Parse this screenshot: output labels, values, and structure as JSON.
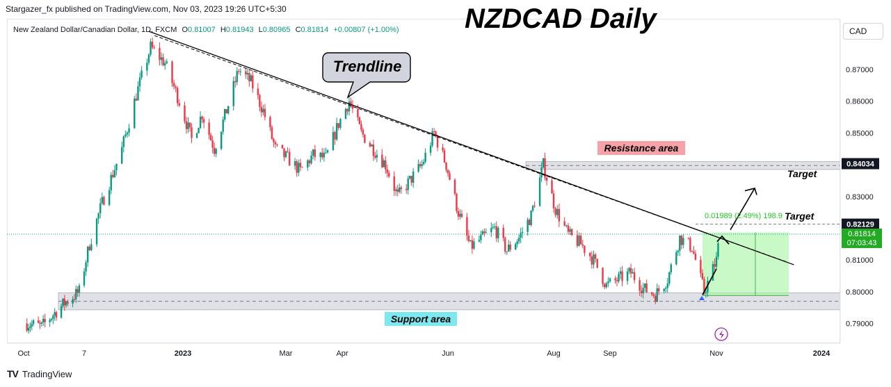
{
  "header": {
    "published": "Stargazer_fx published on TradingView.com, Nov 03, 2023 19:26 UTC+5:30"
  },
  "legend": {
    "symbol": "New Zealand Dollar/Canadian Dollar, 1D, FXCM",
    "open_label": "O",
    "open": "0.81007",
    "high_label": "H",
    "high": "0.81943",
    "low_label": "L",
    "low": "0.80965",
    "close_label": "C",
    "close": "0.81814",
    "change": "+0.00807 (+1.00%)"
  },
  "big_title": "NZDCAD Daily",
  "currency_button": "CAD",
  "footer": {
    "brand": "TradingView",
    "logo": "TV"
  },
  "annotations": {
    "trendline_label": "Trendline",
    "resistance_label": "Resistance area",
    "support_label": "Support area",
    "target_1": "Target",
    "target_2": "Target",
    "measure_text": "0.01989 (2.49%) 198.9"
  },
  "price_tags": {
    "resistance": "0.84034",
    "target": "0.82129",
    "current": "0.81814",
    "countdown": "07:03:43"
  },
  "colors": {
    "up": "#089981",
    "down": "#f23645",
    "trendline": "#000000",
    "zone": "#d1d4dc",
    "resistance_label_bg": "#f7a1a8",
    "support_label_bg": "#7ee8f0",
    "projection": "#a5f5a0"
  },
  "chart_data": {
    "type": "candlestick",
    "title": "NZDCAD Daily",
    "y_axis": {
      "ticks": [
        "0.87000",
        "0.86000",
        "0.85000",
        "0.84000",
        "0.83000",
        "0.82000",
        "0.81000",
        "0.80000",
        "0.79000"
      ],
      "ylim": [
        0.7853,
        0.8878
      ]
    },
    "x_axis": {
      "ticks": [
        "Oct",
        "7",
        "2023",
        "Mar",
        "Apr",
        "Jun",
        "Aug",
        "Sep",
        "Nov",
        "2024"
      ]
    },
    "ohlc_last": {
      "open": 0.81007,
      "high": 0.81943,
      "low": 0.80965,
      "close": 0.81814,
      "change": 0.00807,
      "change_pct": 1.0
    },
    "anchor_closes": [
      {
        "date": "2022-10-03",
        "close": 0.79
      },
      {
        "date": "2022-10-12",
        "close": 0.789
      },
      {
        "date": "2022-10-25",
        "close": 0.796
      },
      {
        "date": "2022-11-04",
        "close": 0.8
      },
      {
        "date": "2022-11-10",
        "close": 0.815
      },
      {
        "date": "2022-11-17",
        "close": 0.828
      },
      {
        "date": "2022-11-28",
        "close": 0.845
      },
      {
        "date": "2022-12-06",
        "close": 0.862
      },
      {
        "date": "2022-12-14",
        "close": 0.877
      },
      {
        "date": "2022-12-22",
        "close": 0.872
      },
      {
        "date": "2022-12-30",
        "close": 0.86
      },
      {
        "date": "2023-01-06",
        "close": 0.848
      },
      {
        "date": "2023-01-12",
        "close": 0.856
      },
      {
        "date": "2023-01-19",
        "close": 0.845
      },
      {
        "date": "2023-01-26",
        "close": 0.857
      },
      {
        "date": "2023-02-02",
        "close": 0.87
      },
      {
        "date": "2023-02-09",
        "close": 0.866
      },
      {
        "date": "2023-02-16",
        "close": 0.857
      },
      {
        "date": "2023-02-23",
        "close": 0.845
      },
      {
        "date": "2023-03-02",
        "close": 0.842
      },
      {
        "date": "2023-03-09",
        "close": 0.838
      },
      {
        "date": "2023-03-16",
        "close": 0.843
      },
      {
        "date": "2023-03-23",
        "close": 0.842
      },
      {
        "date": "2023-03-30",
        "close": 0.853
      },
      {
        "date": "2023-04-05",
        "close": 0.86
      },
      {
        "date": "2023-04-12",
        "close": 0.85
      },
      {
        "date": "2023-04-19",
        "close": 0.845
      },
      {
        "date": "2023-04-26",
        "close": 0.84
      },
      {
        "date": "2023-05-03",
        "close": 0.83
      },
      {
        "date": "2023-05-10",
        "close": 0.835
      },
      {
        "date": "2023-05-17",
        "close": 0.84
      },
      {
        "date": "2023-05-24",
        "close": 0.85
      },
      {
        "date": "2023-05-31",
        "close": 0.84
      },
      {
        "date": "2023-06-07",
        "close": 0.825
      },
      {
        "date": "2023-06-14",
        "close": 0.814
      },
      {
        "date": "2023-06-21",
        "close": 0.817
      },
      {
        "date": "2023-06-28",
        "close": 0.82
      },
      {
        "date": "2023-07-05",
        "close": 0.813
      },
      {
        "date": "2023-07-12",
        "close": 0.817
      },
      {
        "date": "2023-07-19",
        "close": 0.824
      },
      {
        "date": "2023-07-26",
        "close": 0.84
      },
      {
        "date": "2023-08-02",
        "close": 0.826
      },
      {
        "date": "2023-08-09",
        "close": 0.818
      },
      {
        "date": "2023-08-16",
        "close": 0.815
      },
      {
        "date": "2023-08-23",
        "close": 0.81
      },
      {
        "date": "2023-08-30",
        "close": 0.802
      },
      {
        "date": "2023-09-06",
        "close": 0.804
      },
      {
        "date": "2023-09-13",
        "close": 0.806
      },
      {
        "date": "2023-09-20",
        "close": 0.801
      },
      {
        "date": "2023-09-27",
        "close": 0.799
      },
      {
        "date": "2023-10-04",
        "close": 0.804
      },
      {
        "date": "2023-10-11",
        "close": 0.817
      },
      {
        "date": "2023-10-18",
        "close": 0.814
      },
      {
        "date": "2023-10-25",
        "close": 0.8
      },
      {
        "date": "2023-11-01",
        "close": 0.81
      },
      {
        "date": "2023-11-03",
        "close": 0.8181
      }
    ],
    "zones": [
      {
        "name": "Resistance area",
        "from": 0.8385,
        "to": 0.841
      },
      {
        "name": "Support area",
        "from": 0.7943,
        "to": 0.7997
      }
    ],
    "trendline": [
      {
        "date": "2022-12-13",
        "price": 0.882
      },
      {
        "date": "2023-12-16",
        "price": 0.8085
      }
    ],
    "targets": [
      0.84034,
      0.82129
    ],
    "projection_box": {
      "from_date": "2023-10-24",
      "to_date": "2023-12-13",
      "low": 0.7988,
      "high": 0.8187,
      "measure": 0.01989,
      "measure_pct": 2.49,
      "pips": 198.9
    },
    "grid": false,
    "legend_position": "top-left"
  }
}
